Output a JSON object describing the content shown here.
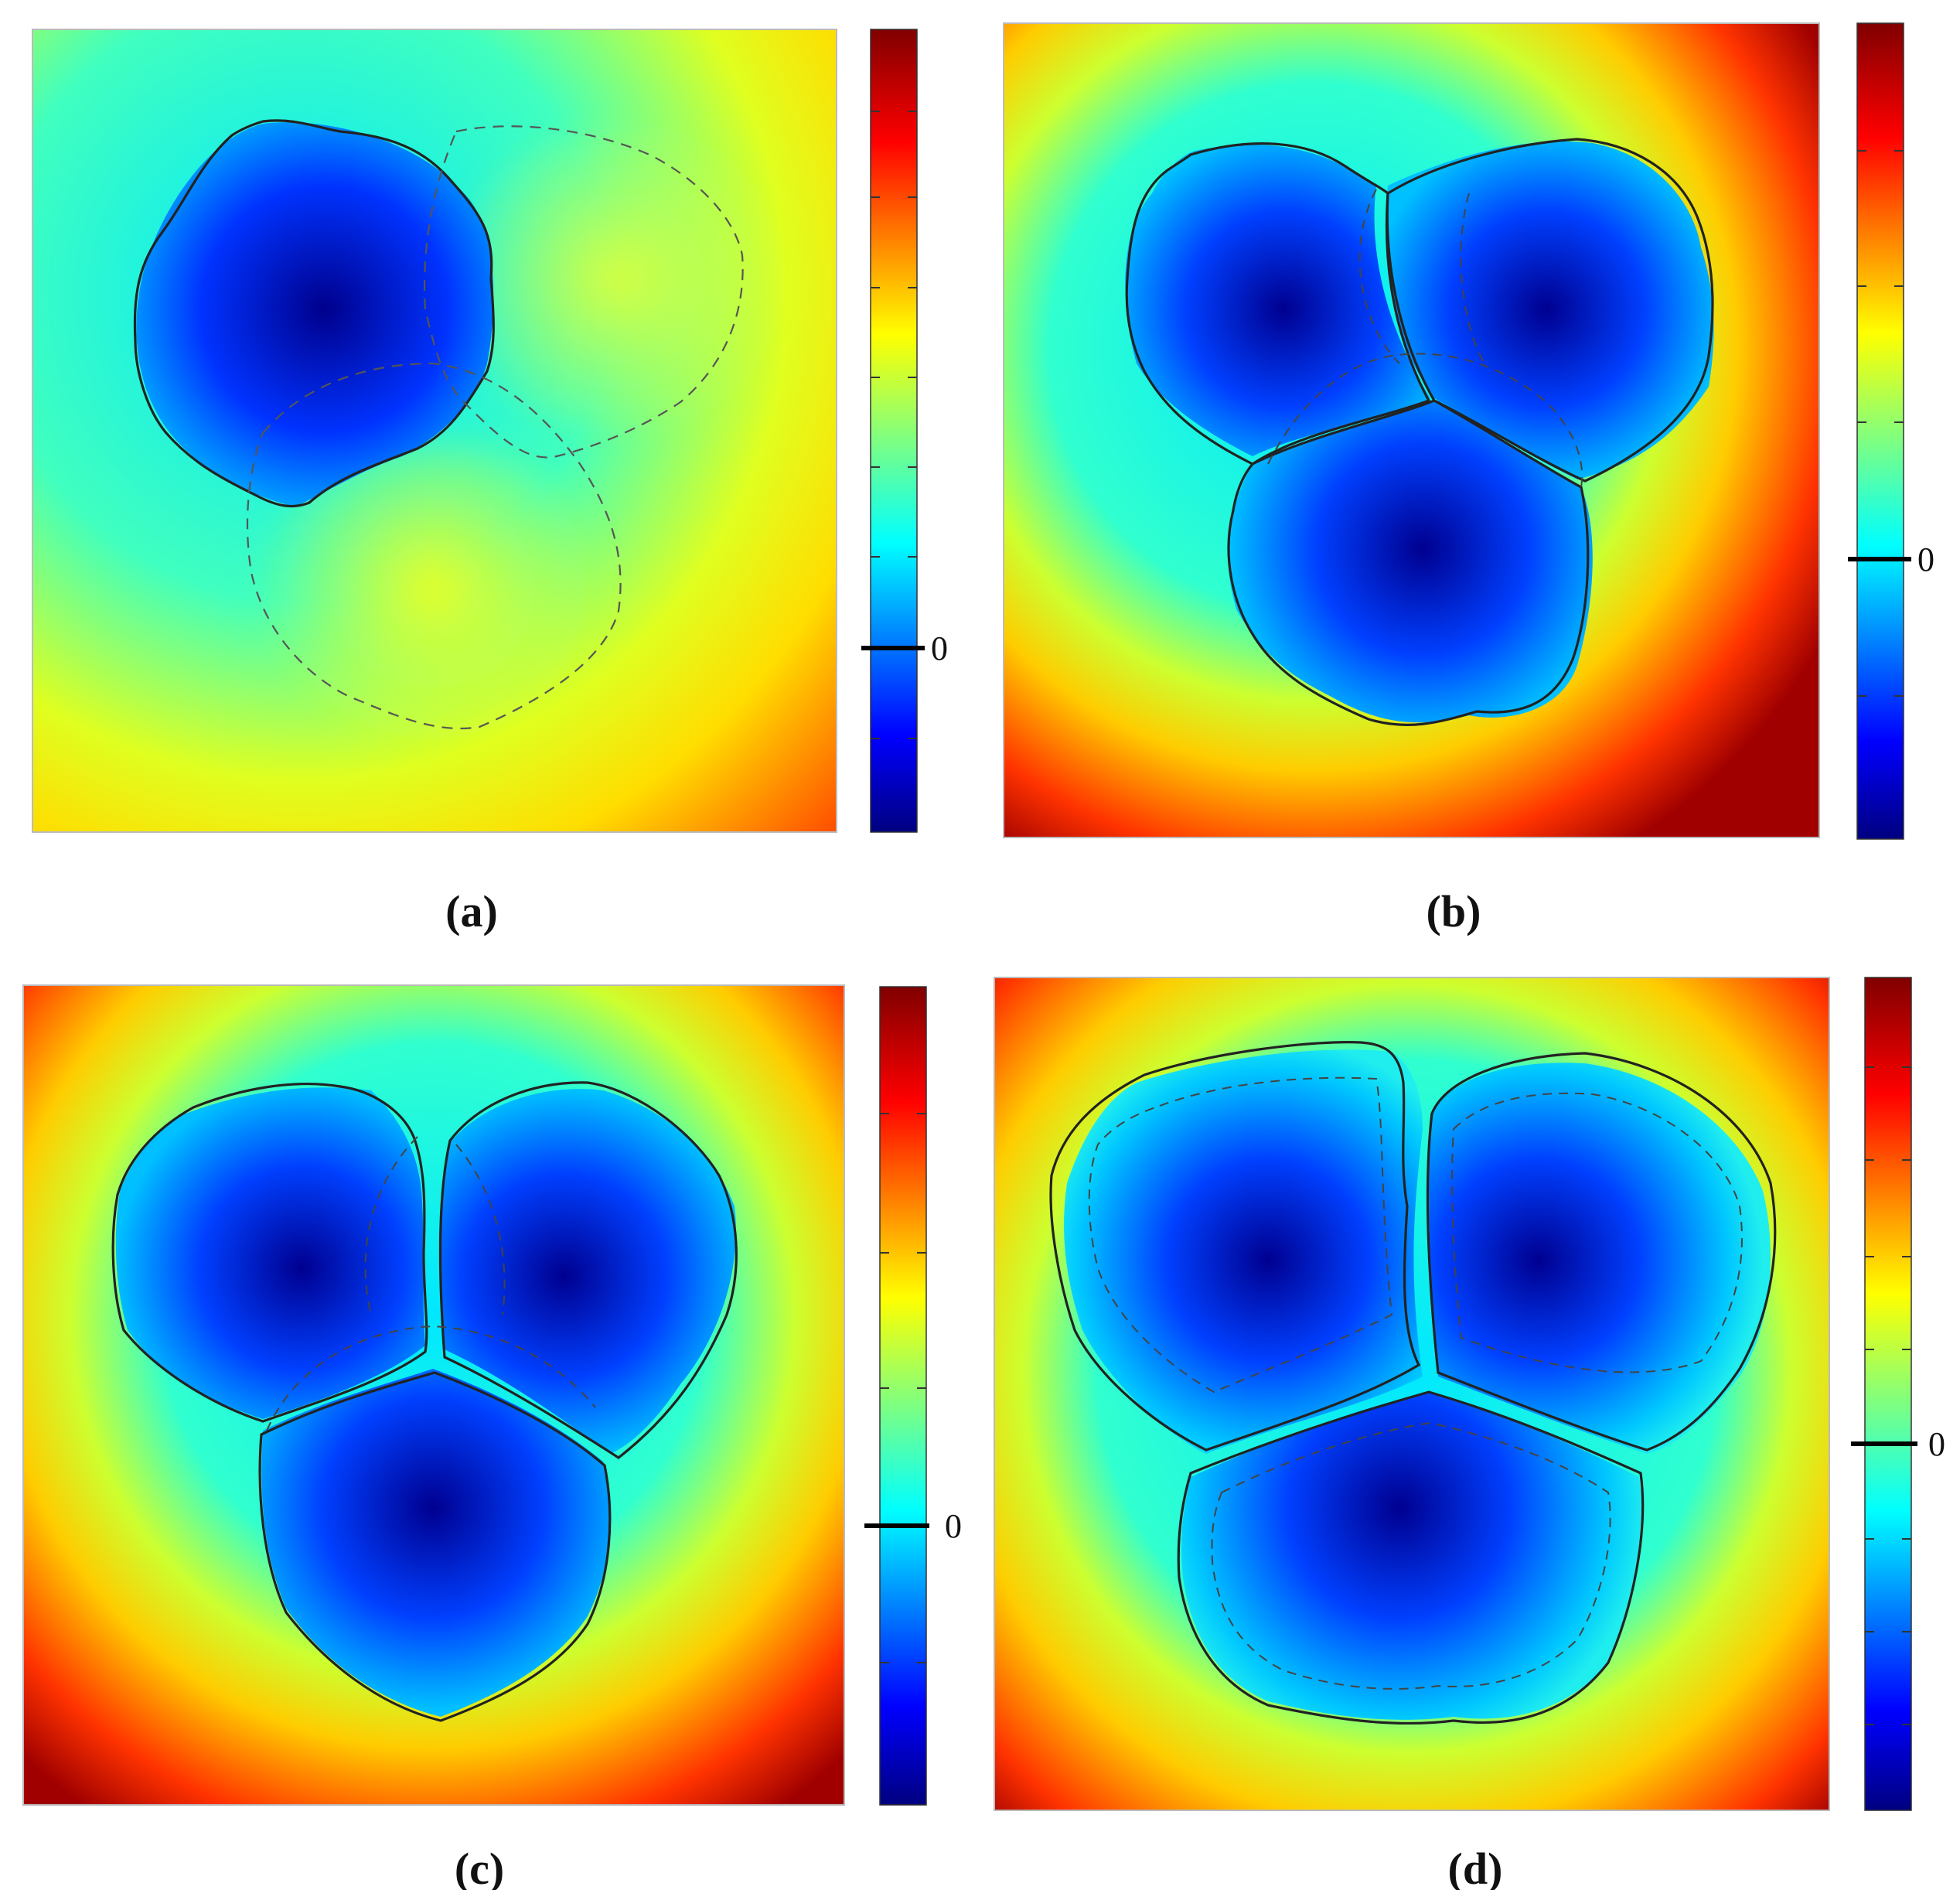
{
  "figure": {
    "panels": [
      {
        "caption": "(a)",
        "zero_label": "0",
        "zero_level": 0.22,
        "regions": 1
      },
      {
        "caption": "(b)",
        "zero_label": "0",
        "zero_level": 0.34,
        "regions": 3
      },
      {
        "caption": "(c)",
        "zero_label": "0",
        "zero_level": 0.34,
        "regions": 3
      },
      {
        "caption": "(d)",
        "zero_label": "0",
        "zero_level": 0.41,
        "regions": 3
      }
    ],
    "colormap": "jet"
  }
}
